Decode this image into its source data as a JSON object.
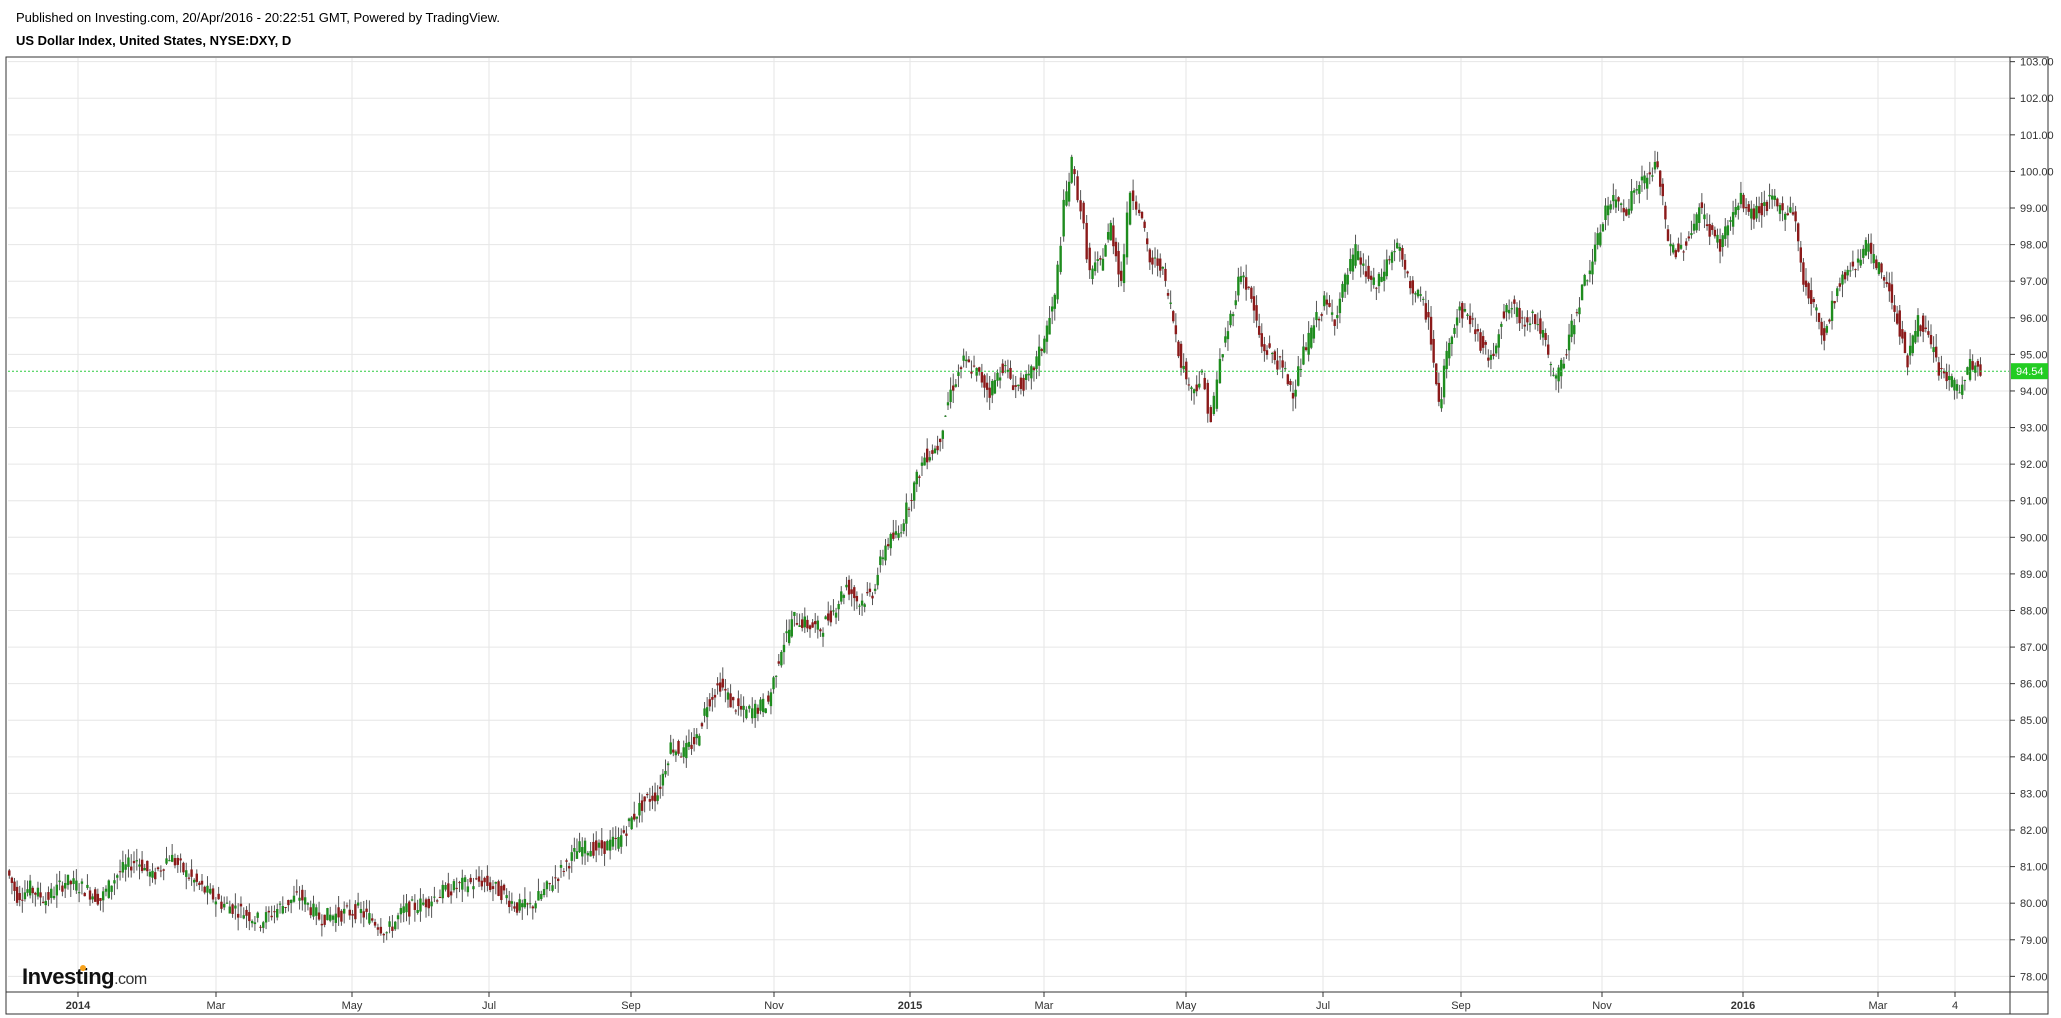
{
  "header": {
    "published": "Published on Investing.com, 20/Apr/2016 - 20:22:51 GMT, Powered by TradingView.",
    "symbol": "US Dollar Index, United States, NYSE:DXY, D"
  },
  "brand": {
    "name": "Investing",
    "suffix": ".com"
  },
  "colors": {
    "up": "#1e8c1e",
    "down": "#8b1a1a",
    "last_price_line": "#2ecc40",
    "last_price_badge": "#22cc22",
    "grid": "#e6e6e6"
  },
  "chart_data": {
    "type": "candlestick",
    "title": "US Dollar Index, United States, NYSE:DXY, D",
    "ylim": [
      77.6,
      103.1
    ],
    "y_ticks": [
      "78.00",
      "79.00",
      "80.00",
      "81.00",
      "82.00",
      "83.00",
      "84.00",
      "85.00",
      "86.00",
      "87.00",
      "88.00",
      "89.00",
      "90.00",
      "91.00",
      "92.00",
      "93.00",
      "94.00",
      "95.00",
      "96.00",
      "97.00",
      "98.00",
      "99.00",
      "100.00",
      "101.00",
      "102.00",
      "103.00"
    ],
    "x_ticks": [
      {
        "label": "2014",
        "bold": true
      },
      {
        "label": "Mar",
        "bold": false
      },
      {
        "label": "May",
        "bold": false
      },
      {
        "label": "Jul",
        "bold": false
      },
      {
        "label": "Sep",
        "bold": false
      },
      {
        "label": "Nov",
        "bold": false
      },
      {
        "label": "2015",
        "bold": true
      },
      {
        "label": "Mar",
        "bold": false
      },
      {
        "label": "May",
        "bold": false
      },
      {
        "label": "Jul",
        "bold": false
      },
      {
        "label": "Sep",
        "bold": false
      },
      {
        "label": "Nov",
        "bold": false
      },
      {
        "label": "2016",
        "bold": true
      },
      {
        "label": "Mar",
        "bold": false
      },
      {
        "label": "4",
        "bold": false
      }
    ],
    "last_price": "94.54",
    "series": [
      {
        "x": 0,
        "c": 80.9
      },
      {
        "x": 8,
        "c": 80.2
      },
      {
        "x": 18,
        "c": 80.4
      },
      {
        "x": 30,
        "c": 80.1
      },
      {
        "x": 45,
        "c": 80.6
      },
      {
        "x": 60,
        "c": 80.4
      },
      {
        "x": 72,
        "c": 80.1
      },
      {
        "x": 85,
        "c": 80.8
      },
      {
        "x": 100,
        "c": 81.2
      },
      {
        "x": 112,
        "c": 80.7
      },
      {
        "x": 125,
        "c": 81.3
      },
      {
        "x": 138,
        "c": 80.8
      },
      {
        "x": 150,
        "c": 80.4
      },
      {
        "x": 165,
        "c": 80.0
      },
      {
        "x": 180,
        "c": 79.8
      },
      {
        "x": 195,
        "c": 79.5
      },
      {
        "x": 210,
        "c": 79.9
      },
      {
        "x": 225,
        "c": 80.2
      },
      {
        "x": 240,
        "c": 79.6
      },
      {
        "x": 255,
        "c": 79.7
      },
      {
        "x": 270,
        "c": 79.8
      },
      {
        "x": 283,
        "c": 79.5
      },
      {
        "x": 292,
        "c": 79.2
      },
      {
        "x": 305,
        "c": 79.8
      },
      {
        "x": 320,
        "c": 80.0
      },
      {
        "x": 335,
        "c": 80.3
      },
      {
        "x": 350,
        "c": 80.5
      },
      {
        "x": 365,
        "c": 80.6
      },
      {
        "x": 380,
        "c": 80.3
      },
      {
        "x": 392,
        "c": 79.9
      },
      {
        "x": 402,
        "c": 79.9
      },
      {
        "x": 415,
        "c": 80.4
      },
      {
        "x": 428,
        "c": 81.0
      },
      {
        "x": 440,
        "c": 81.5
      },
      {
        "x": 455,
        "c": 81.5
      },
      {
        "x": 470,
        "c": 81.7
      },
      {
        "x": 480,
        "c": 82.3
      },
      {
        "x": 490,
        "c": 82.8
      },
      {
        "x": 500,
        "c": 83.0
      },
      {
        "x": 510,
        "c": 84.3
      },
      {
        "x": 520,
        "c": 84.1
      },
      {
        "x": 530,
        "c": 84.5
      },
      {
        "x": 538,
        "c": 85.5
      },
      {
        "x": 548,
        "c": 86.0
      },
      {
        "x": 556,
        "c": 85.5
      },
      {
        "x": 566,
        "c": 85.2
      },
      {
        "x": 575,
        "c": 85.3
      },
      {
        "x": 585,
        "c": 85.5
      },
      {
        "x": 595,
        "c": 87.0
      },
      {
        "x": 605,
        "c": 87.8
      },
      {
        "x": 615,
        "c": 87.6
      },
      {
        "x": 625,
        "c": 87.5
      },
      {
        "x": 635,
        "c": 88.0
      },
      {
        "x": 645,
        "c": 88.7
      },
      {
        "x": 655,
        "c": 88.2
      },
      {
        "x": 665,
        "c": 88.5
      },
      {
        "x": 675,
        "c": 89.8
      },
      {
        "x": 685,
        "c": 90.1
      },
      {
        "x": 695,
        "c": 91.2
      },
      {
        "x": 705,
        "c": 92.2
      },
      {
        "x": 715,
        "c": 92.5
      },
      {
        "x": 725,
        "c": 94.0
      },
      {
        "x": 735,
        "c": 94.8
      },
      {
        "x": 745,
        "c": 94.5
      },
      {
        "x": 755,
        "c": 94.0
      },
      {
        "x": 765,
        "c": 94.7
      },
      {
        "x": 775,
        "c": 94.1
      },
      {
        "x": 785,
        "c": 94.3
      },
      {
        "x": 795,
        "c": 95.2
      },
      {
        "x": 805,
        "c": 96.5
      },
      {
        "x": 812,
        "c": 99.0
      },
      {
        "x": 818,
        "c": 100.2
      },
      {
        "x": 825,
        "c": 99.0
      },
      {
        "x": 832,
        "c": 97.2
      },
      {
        "x": 840,
        "c": 97.5
      },
      {
        "x": 848,
        "c": 98.5
      },
      {
        "x": 856,
        "c": 97.0
      },
      {
        "x": 863,
        "c": 99.5
      },
      {
        "x": 870,
        "c": 99.0
      },
      {
        "x": 878,
        "c": 97.5
      },
      {
        "x": 886,
        "c": 97.5
      },
      {
        "x": 894,
        "c": 96.3
      },
      {
        "x": 902,
        "c": 94.8
      },
      {
        "x": 910,
        "c": 94.0
      },
      {
        "x": 918,
        "c": 94.4
      },
      {
        "x": 925,
        "c": 93.2
      },
      {
        "x": 932,
        "c": 94.8
      },
      {
        "x": 940,
        "c": 96.0
      },
      {
        "x": 948,
        "c": 97.3
      },
      {
        "x": 956,
        "c": 96.5
      },
      {
        "x": 964,
        "c": 95.2
      },
      {
        "x": 972,
        "c": 95.0
      },
      {
        "x": 980,
        "c": 94.6
      },
      {
        "x": 988,
        "c": 94.0
      },
      {
        "x": 996,
        "c": 95.0
      },
      {
        "x": 1004,
        "c": 95.8
      },
      {
        "x": 1012,
        "c": 96.4
      },
      {
        "x": 1020,
        "c": 96.0
      },
      {
        "x": 1028,
        "c": 97.0
      },
      {
        "x": 1036,
        "c": 97.8
      },
      {
        "x": 1044,
        "c": 97.2
      },
      {
        "x": 1052,
        "c": 96.8
      },
      {
        "x": 1060,
        "c": 97.5
      },
      {
        "x": 1068,
        "c": 98.0
      },
      {
        "x": 1076,
        "c": 97.0
      },
      {
        "x": 1084,
        "c": 96.6
      },
      {
        "x": 1092,
        "c": 96.0
      },
      {
        "x": 1100,
        "c": 93.5
      },
      {
        "x": 1108,
        "c": 95.5
      },
      {
        "x": 1116,
        "c": 96.2
      },
      {
        "x": 1124,
        "c": 96.0
      },
      {
        "x": 1132,
        "c": 95.3
      },
      {
        "x": 1140,
        "c": 94.8
      },
      {
        "x": 1148,
        "c": 96.0
      },
      {
        "x": 1156,
        "c": 96.3
      },
      {
        "x": 1164,
        "c": 95.9
      },
      {
        "x": 1172,
        "c": 96.1
      },
      {
        "x": 1180,
        "c": 95.5
      },
      {
        "x": 1188,
        "c": 94.3
      },
      {
        "x": 1196,
        "c": 94.8
      },
      {
        "x": 1204,
        "c": 96.0
      },
      {
        "x": 1212,
        "c": 97.0
      },
      {
        "x": 1220,
        "c": 97.8
      },
      {
        "x": 1228,
        "c": 99.0
      },
      {
        "x": 1236,
        "c": 99.2
      },
      {
        "x": 1244,
        "c": 99.0
      },
      {
        "x": 1252,
        "c": 99.6
      },
      {
        "x": 1260,
        "c": 99.8
      },
      {
        "x": 1268,
        "c": 100.2
      },
      {
        "x": 1276,
        "c": 98.0
      },
      {
        "x": 1284,
        "c": 97.8
      },
      {
        "x": 1292,
        "c": 98.2
      },
      {
        "x": 1300,
        "c": 99.0
      },
      {
        "x": 1308,
        "c": 98.4
      },
      {
        "x": 1316,
        "c": 98.0
      },
      {
        "x": 1324,
        "c": 98.7
      },
      {
        "x": 1332,
        "c": 99.2
      },
      {
        "x": 1340,
        "c": 98.8
      },
      {
        "x": 1348,
        "c": 99.0
      },
      {
        "x": 1356,
        "c": 99.2
      },
      {
        "x": 1364,
        "c": 98.9
      },
      {
        "x": 1372,
        "c": 99.0
      },
      {
        "x": 1380,
        "c": 97.0
      },
      {
        "x": 1388,
        "c": 96.3
      },
      {
        "x": 1396,
        "c": 95.5
      },
      {
        "x": 1404,
        "c": 96.6
      },
      {
        "x": 1412,
        "c": 97.2
      },
      {
        "x": 1420,
        "c": 97.5
      },
      {
        "x": 1428,
        "c": 98.0
      },
      {
        "x": 1436,
        "c": 97.4
      },
      {
        "x": 1444,
        "c": 97.0
      },
      {
        "x": 1452,
        "c": 96.0
      },
      {
        "x": 1460,
        "c": 94.8
      },
      {
        "x": 1468,
        "c": 96.0
      },
      {
        "x": 1476,
        "c": 95.4
      },
      {
        "x": 1484,
        "c": 94.6
      },
      {
        "x": 1492,
        "c": 94.3
      },
      {
        "x": 1500,
        "c": 94.0
      },
      {
        "x": 1508,
        "c": 94.7
      },
      {
        "x": 1516,
        "c": 94.54
      }
    ]
  }
}
